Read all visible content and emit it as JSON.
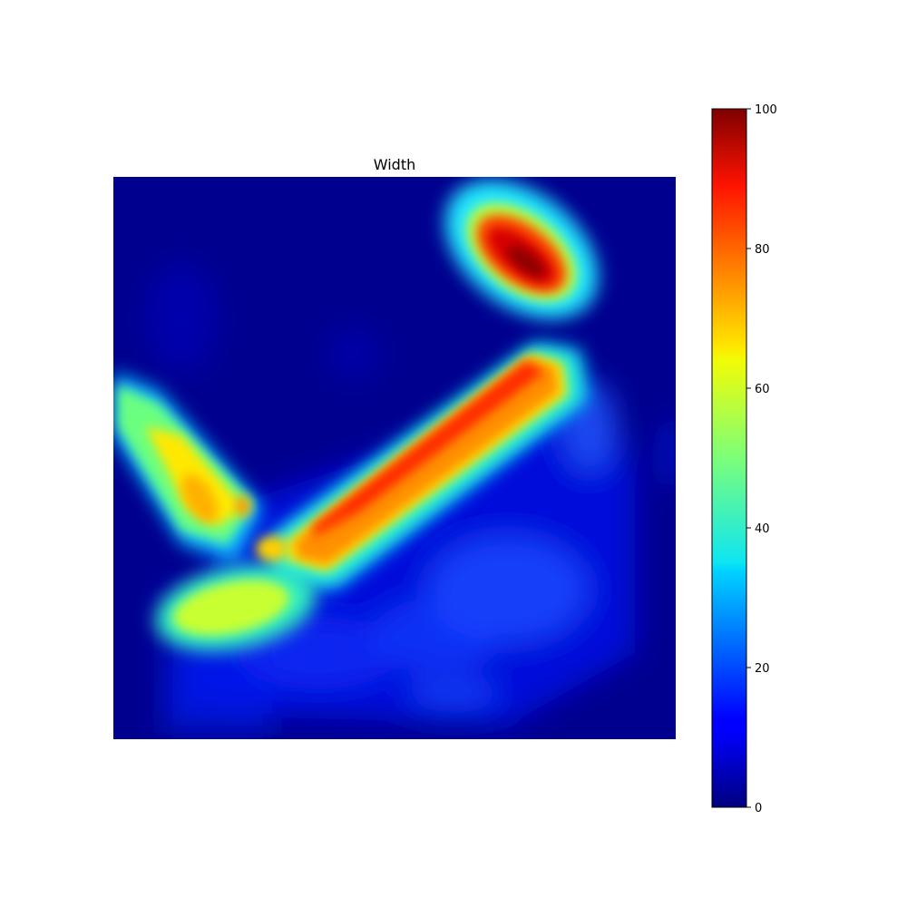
{
  "chart_data": {
    "type": "heatmap",
    "title": "Width",
    "xlabel": "",
    "ylabel": "",
    "axes_visible": false,
    "colormap": "jet",
    "colorbar": {
      "position": "right",
      "range": [
        0,
        100
      ],
      "ticks": [
        0,
        20,
        40,
        60,
        80,
        100
      ],
      "tick_labels": [
        "0",
        "20",
        "40",
        "60",
        "80",
        "100"
      ]
    },
    "values_grid": [
      [
        1,
        1,
        1,
        1,
        1,
        1,
        1,
        1,
        1,
        1,
        1,
        1,
        1,
        1,
        1,
        1,
        1,
        1,
        1,
        1,
        1,
        1,
        1,
        1,
        1,
        1,
        1,
        1,
        1,
        1,
        1,
        1,
        1,
        1,
        1,
        1,
        1,
        1,
        1,
        1,
        1,
        1,
        1,
        1,
        1,
        1,
        1,
        1,
        1,
        1,
        1,
        1,
        1,
        1,
        1,
        1,
        1,
        1,
        1,
        1,
        1,
        1,
        1,
        1,
        1,
        1,
        1,
        1,
        1,
        1,
        1,
        1,
        1,
        1,
        1,
        1,
        1,
        1,
        1,
        1,
        1,
        1,
        1,
        1,
        1,
        1,
        1,
        1,
        1,
        1,
        1,
        1,
        1,
        1,
        1,
        1,
        1,
        1,
        1,
        1,
        1,
        1,
        1,
        1,
        1,
        1,
        1,
        1,
        1,
        1,
        1,
        1,
        1,
        1,
        1,
        1,
        1,
        1,
        1,
        1,
        1,
        1,
        1,
        1
      ]
    ],
    "regions": [
      {
        "label": "diagonal band core",
        "peak_value": 85
      },
      {
        "label": "upper-right blob",
        "peak_value": 100
      },
      {
        "label": "left arm",
        "peak_value": 70
      },
      {
        "label": "lower-left pad",
        "peak_value": 62
      },
      {
        "label": "background",
        "peak_value": 2
      }
    ]
  }
}
